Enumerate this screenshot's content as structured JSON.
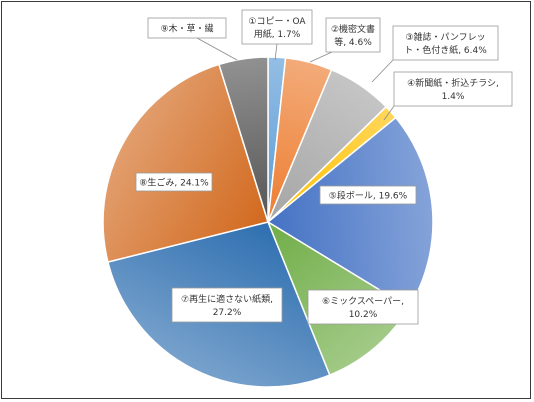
{
  "chart_data": {
    "type": "pie",
    "title": "",
    "start_angle_deg": 0,
    "direction": "clockwise",
    "slices": [
      {
        "name": "①コピー・OA用紙",
        "value": 1.7,
        "label_lines": [
          "①コピー・OA",
          "用紙, 1.7%"
        ],
        "color": "#5b9bd5"
      },
      {
        "name": "②機密文書等",
        "value": 4.6,
        "label_lines": [
          "②機密文書",
          "等, 4.6%"
        ],
        "color": "#ed7d31"
      },
      {
        "name": "③雑誌・パンフレット・色付き紙",
        "value": 6.4,
        "label_lines": [
          "③雑誌・パンフレッ",
          "ト・色付き紙, 6.4%"
        ],
        "color": "#a5a5a5"
      },
      {
        "name": "④新聞紙・折込チラシ",
        "value": 1.4,
        "label_lines": [
          "④新聞紙・折込チラシ,",
          "1.4%"
        ],
        "color": "#ffc000"
      },
      {
        "name": "⑤段ボール",
        "value": 19.6,
        "label_lines": [
          "⑤段ボール, 19.6%"
        ],
        "color": "#4472c4"
      },
      {
        "name": "⑥ミックスペーパー",
        "value": 10.2,
        "label_lines": [
          "⑥ミックスペーパー,",
          "10.2%"
        ],
        "color": "#70ad47"
      },
      {
        "name": "⑦再生に適さない紙類",
        "value": 27.2,
        "label_lines": [
          "⑦再生に適さない紙類,",
          "27.2%"
        ],
        "color": "#2e6fb0"
      },
      {
        "name": "⑧生ごみ",
        "value": 24.1,
        "label_lines": [
          "⑧生ごみ, 24.1%"
        ],
        "color": "#d2691e"
      },
      {
        "name": "⑨木・草・繊",
        "value": 4.8,
        "label_lines": [
          "⑨木・草・繊"
        ],
        "color": "#555555"
      }
    ]
  }
}
